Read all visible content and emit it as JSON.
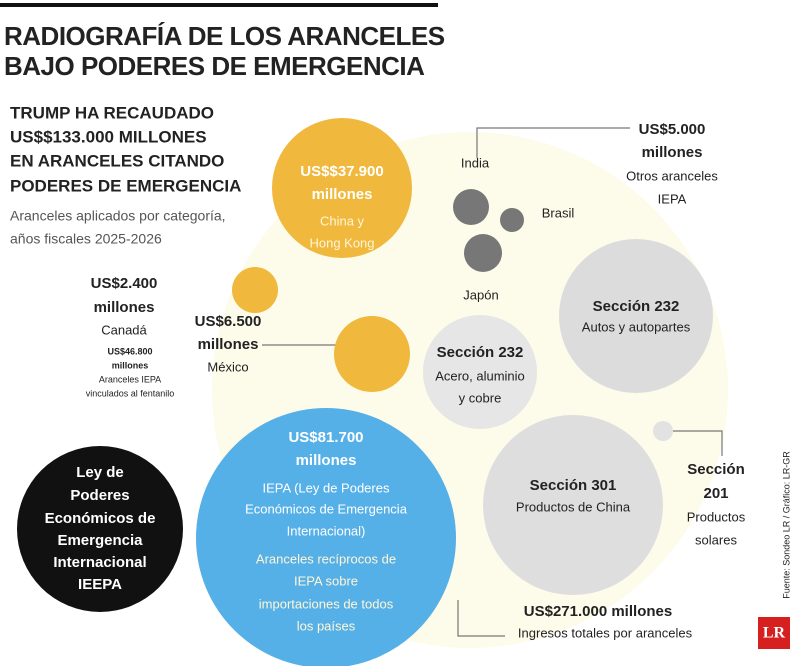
{
  "header": {
    "title": [
      "RADIOGRAFÍA DE LOS ARANCELES",
      "BAJO PODERES DE EMERGENCIA"
    ],
    "headline": [
      "TRUMP HA RECAUDADO",
      "US$$133.000 MILLONES",
      "EN ARANCELES CITANDO",
      "PODERES DE EMERGENCIA"
    ],
    "description": [
      "Aranceles aplicados por categoría,",
      "años fiscales 2025-2026"
    ]
  },
  "bubbles": {
    "china": {
      "amount": "US$$37.900",
      "unit": "millones",
      "label": [
        "China y",
        "Hong Kong"
      ]
    },
    "others": {
      "amount": "US$5.000",
      "unit": "millones",
      "label": [
        "Otros aranceles",
        "IEPA"
      ],
      "countries": [
        "India",
        "Brasil",
        "Japón"
      ]
    },
    "canada": {
      "amount": "US$2.400",
      "unit": "millones",
      "label": "Canadá",
      "fentanyl_amount": "US$46.800",
      "fentanyl_unit": "millones",
      "fentanyl_label": [
        "Aranceles IEPA",
        "vinculados al fentanilo"
      ]
    },
    "mexico": {
      "amount": "US$6.500",
      "unit": "millones",
      "label": "México"
    },
    "section232_autos": {
      "name": "Sección 232",
      "label": "Autos y autopartes"
    },
    "section232_steel": {
      "name": "Sección 232",
      "label": [
        "Acero, aluminio",
        "y cobre"
      ]
    },
    "ieepa": {
      "amount": "US$81.700",
      "unit": "millones",
      "label": [
        "IEPA (Ley de Poderes",
        "Económicos de Emergencia",
        "Internacional)"
      ],
      "detail": [
        "Aranceles recíprocos de",
        "IEPA sobre",
        "importaciones de todos",
        "los países"
      ]
    },
    "section301": {
      "name": "Sección 301",
      "label": "Productos de China"
    },
    "section201": {
      "name": [
        "Sección",
        "201"
      ],
      "label": [
        "Productos",
        "solares"
      ]
    }
  },
  "legend": [
    "Ley de",
    "Poderes",
    "Económicos de",
    "Emergencia",
    "Internacional",
    "IEEPA"
  ],
  "total": {
    "amount": "US$271.000 millones",
    "label": "Ingresos totales por aranceles"
  },
  "source": "Fuente: Sondeo LR / Gráfico: LR-GR",
  "logo": "LR"
}
